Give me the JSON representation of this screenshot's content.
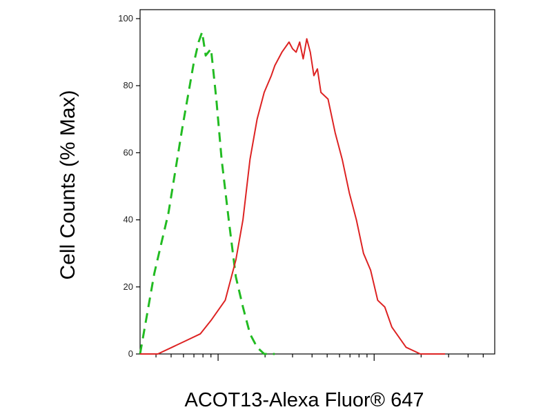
{
  "chart_data": {
    "type": "line",
    "title": "",
    "xlabel": "ACOT13-Alexa Fluor® 647",
    "ylabel": "Cell Counts (% Max)",
    "xscale": "log",
    "ylim": [
      0,
      100
    ],
    "yticks": [
      0,
      20,
      40,
      60,
      80,
      100
    ],
    "ytick_labels": [
      "0",
      "20",
      "40",
      "60",
      "80",
      "100"
    ],
    "grid": false,
    "legend": "none",
    "series": [
      {
        "color": "#22bb22",
        "style": "dashed",
        "x": [
          0.0,
          0.02,
          0.04,
          0.06,
          0.08,
          0.1,
          0.12,
          0.14,
          0.15,
          0.165,
          0.175,
          0.185,
          0.2,
          0.215,
          0.23,
          0.25,
          0.27,
          0.29,
          0.31,
          0.33,
          0.35,
          0.38
        ],
        "values": [
          0,
          12,
          24,
          33,
          42,
          55,
          68,
          80,
          86,
          93,
          96,
          89,
          91,
          76,
          58,
          40,
          23,
          14,
          6,
          2,
          0,
          0
        ]
      },
      {
        "color": "#dd2222",
        "style": "solid",
        "x": [
          0.0,
          0.05,
          0.09,
          0.13,
          0.17,
          0.2,
          0.24,
          0.27,
          0.29,
          0.31,
          0.33,
          0.35,
          0.37,
          0.38,
          0.4,
          0.42,
          0.43,
          0.44,
          0.45,
          0.46,
          0.47,
          0.48,
          0.49,
          0.5,
          0.51,
          0.53,
          0.55,
          0.57,
          0.59,
          0.61,
          0.63,
          0.65,
          0.67,
          0.69,
          0.71,
          0.73,
          0.75,
          0.77,
          0.79,
          0.82,
          0.86
        ],
        "values": [
          0,
          0,
          2,
          4,
          6,
          10,
          16,
          28,
          40,
          58,
          70,
          78,
          83,
          86,
          90,
          93,
          91,
          90,
          93,
          88,
          94,
          90,
          83,
          85,
          78,
          76,
          66,
          58,
          48,
          40,
          30,
          25,
          16,
          14,
          8,
          5,
          2,
          1,
          0,
          0,
          0
        ]
      }
    ]
  }
}
